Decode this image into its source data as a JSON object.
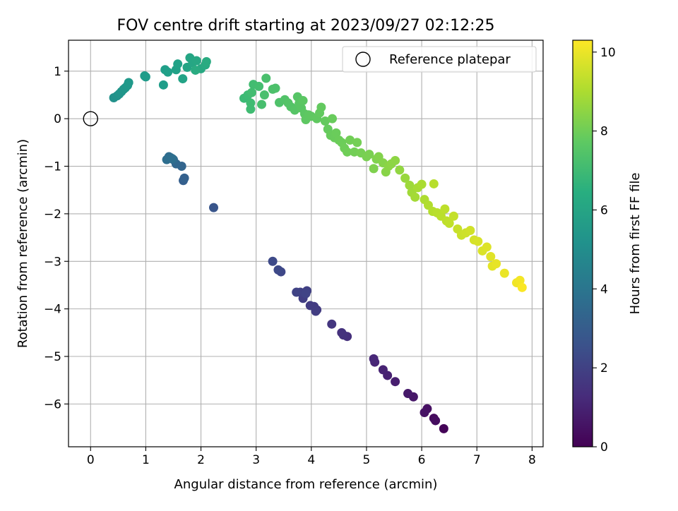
{
  "chart_data": {
    "type": "scatter",
    "title": "FOV centre drift starting at 2023/09/27 02:12:25",
    "xlabel": "Angular distance from reference (arcmin)",
    "ylabel": "Rotation from reference (arcmin)",
    "xlim": [
      -0.4,
      8.2
    ],
    "ylim": [
      -6.9,
      1.65
    ],
    "xticks": [
      0,
      1,
      2,
      3,
      4,
      5,
      6,
      7,
      8
    ],
    "xtick_labels": [
      "0",
      "1",
      "2",
      "3",
      "4",
      "5",
      "6",
      "7",
      "8"
    ],
    "yticks": [
      1,
      0,
      -1,
      -2,
      -3,
      -4,
      -5,
      -6
    ],
    "ytick_labels": [
      "1",
      "0",
      "−1",
      "−2",
      "−3",
      "−4",
      "−5",
      "−6"
    ],
    "grid": true,
    "legend": {
      "placement": "top-right",
      "entries": [
        "Reference platepar"
      ]
    },
    "reference_point": {
      "x": 0,
      "y": 0
    },
    "colorbar": {
      "label": "Hours from first FF file",
      "range": [
        0,
        10.3
      ],
      "ticks": [
        0,
        2,
        4,
        6,
        8,
        10
      ],
      "tick_labels": [
        "0",
        "2",
        "4",
        "6",
        "8",
        "10"
      ],
      "colormap": "viridis"
    },
    "points": [
      {
        "x": 6.4,
        "y": -6.52,
        "c": 0.1
      },
      {
        "x": 6.22,
        "y": -6.3,
        "c": 0.3
      },
      {
        "x": 6.25,
        "y": -6.35,
        "c": 0.35
      },
      {
        "x": 6.1,
        "y": -6.1,
        "c": 0.45
      },
      {
        "x": 6.05,
        "y": -6.18,
        "c": 0.5
      },
      {
        "x": 5.85,
        "y": -5.85,
        "c": 0.65
      },
      {
        "x": 5.75,
        "y": -5.78,
        "c": 0.7
      },
      {
        "x": 5.52,
        "y": -5.53,
        "c": 0.85
      },
      {
        "x": 5.38,
        "y": -5.4,
        "c": 0.95
      },
      {
        "x": 5.3,
        "y": -5.28,
        "c": 1.0
      },
      {
        "x": 5.15,
        "y": -5.12,
        "c": 1.1
      },
      {
        "x": 5.13,
        "y": -5.05,
        "c": 1.15
      },
      {
        "x": 4.65,
        "y": -4.58,
        "c": 1.4
      },
      {
        "x": 4.55,
        "y": -4.5,
        "c": 1.45
      },
      {
        "x": 4.58,
        "y": -4.55,
        "c": 1.5
      },
      {
        "x": 4.37,
        "y": -4.32,
        "c": 1.6
      },
      {
        "x": 4.1,
        "y": -4.02,
        "c": 1.75
      },
      {
        "x": 4.05,
        "y": -3.95,
        "c": 1.8
      },
      {
        "x": 3.98,
        "y": -3.93,
        "c": 1.82
      },
      {
        "x": 4.08,
        "y": -4.05,
        "c": 1.85
      },
      {
        "x": 3.85,
        "y": -3.78,
        "c": 1.9
      },
      {
        "x": 3.92,
        "y": -3.62,
        "c": 1.95
      },
      {
        "x": 3.8,
        "y": -3.65,
        "c": 2.0
      },
      {
        "x": 3.73,
        "y": -3.65,
        "c": 2.05
      },
      {
        "x": 3.9,
        "y": -3.68,
        "c": 2.1
      },
      {
        "x": 3.45,
        "y": -3.22,
        "c": 2.2
      },
      {
        "x": 3.4,
        "y": -3.18,
        "c": 2.25
      },
      {
        "x": 3.3,
        "y": -3.0,
        "c": 2.3
      },
      {
        "x": 2.23,
        "y": -1.87,
        "c": 2.7
      },
      {
        "x": 1.68,
        "y": -1.3,
        "c": 3.1
      },
      {
        "x": 1.7,
        "y": -1.25,
        "c": 3.15
      },
      {
        "x": 1.65,
        "y": -1.0,
        "c": 3.3
      },
      {
        "x": 1.55,
        "y": -0.95,
        "c": 3.4
      },
      {
        "x": 1.5,
        "y": -0.86,
        "c": 3.5
      },
      {
        "x": 1.45,
        "y": -0.82,
        "c": 3.6
      },
      {
        "x": 1.42,
        "y": -0.8,
        "c": 3.65
      },
      {
        "x": 1.38,
        "y": -0.86,
        "c": 3.7
      },
      {
        "x": 1.48,
        "y": -0.84,
        "c": 3.75
      },
      {
        "x": 0.42,
        "y": 0.44,
        "c": 5.2
      },
      {
        "x": 0.48,
        "y": 0.48,
        "c": 5.25
      },
      {
        "x": 0.52,
        "y": 0.52,
        "c": 5.3
      },
      {
        "x": 0.56,
        "y": 0.57,
        "c": 5.35
      },
      {
        "x": 0.6,
        "y": 0.62,
        "c": 5.4
      },
      {
        "x": 0.63,
        "y": 0.65,
        "c": 5.45
      },
      {
        "x": 0.67,
        "y": 0.7,
        "c": 5.5
      },
      {
        "x": 0.69,
        "y": 0.76,
        "c": 5.5
      },
      {
        "x": 1.0,
        "y": 0.88,
        "c": 5.6
      },
      {
        "x": 0.98,
        "y": 0.9,
        "c": 5.65
      },
      {
        "x": 1.32,
        "y": 0.71,
        "c": 5.7
      },
      {
        "x": 1.35,
        "y": 1.03,
        "c": 5.75
      },
      {
        "x": 1.4,
        "y": 0.98,
        "c": 5.8
      },
      {
        "x": 1.55,
        "y": 1.03,
        "c": 5.85
      },
      {
        "x": 1.58,
        "y": 1.15,
        "c": 5.9
      },
      {
        "x": 1.67,
        "y": 0.84,
        "c": 5.95
      },
      {
        "x": 1.75,
        "y": 1.08,
        "c": 6.0
      },
      {
        "x": 1.8,
        "y": 1.28,
        "c": 6.05
      },
      {
        "x": 1.85,
        "y": 1.18,
        "c": 6.1
      },
      {
        "x": 1.92,
        "y": 1.22,
        "c": 6.15
      },
      {
        "x": 2.0,
        "y": 1.05,
        "c": 6.2
      },
      {
        "x": 2.08,
        "y": 1.13,
        "c": 6.25
      },
      {
        "x": 2.1,
        "y": 1.2,
        "c": 6.3
      },
      {
        "x": 1.9,
        "y": 1.02,
        "c": 6.3
      },
      {
        "x": 2.78,
        "y": 0.43,
        "c": 7.0
      },
      {
        "x": 2.85,
        "y": 0.5,
        "c": 7.05
      },
      {
        "x": 2.9,
        "y": 0.2,
        "c": 7.1
      },
      {
        "x": 2.9,
        "y": 0.33,
        "c": 7.1
      },
      {
        "x": 2.92,
        "y": 0.55,
        "c": 7.15
      },
      {
        "x": 2.95,
        "y": 0.72,
        "c": 7.15
      },
      {
        "x": 3.05,
        "y": 0.68,
        "c": 7.2
      },
      {
        "x": 3.1,
        "y": 0.3,
        "c": 7.25
      },
      {
        "x": 3.15,
        "y": 0.5,
        "c": 7.3
      },
      {
        "x": 3.18,
        "y": 0.85,
        "c": 7.3
      },
      {
        "x": 3.3,
        "y": 0.62,
        "c": 7.35
      },
      {
        "x": 3.35,
        "y": 0.64,
        "c": 7.35
      },
      {
        "x": 3.42,
        "y": 0.34,
        "c": 7.4
      },
      {
        "x": 3.52,
        "y": 0.4,
        "c": 7.45
      },
      {
        "x": 3.58,
        "y": 0.33,
        "c": 7.5
      },
      {
        "x": 3.63,
        "y": 0.25,
        "c": 7.5
      },
      {
        "x": 3.7,
        "y": 0.18,
        "c": 7.55
      },
      {
        "x": 3.75,
        "y": 0.46,
        "c": 7.55
      },
      {
        "x": 3.78,
        "y": 0.32,
        "c": 7.6
      },
      {
        "x": 3.82,
        "y": 0.22,
        "c": 7.6
      },
      {
        "x": 3.85,
        "y": 0.38,
        "c": 7.65
      },
      {
        "x": 3.88,
        "y": 0.1,
        "c": 7.65
      },
      {
        "x": 3.9,
        "y": -0.02,
        "c": 7.7
      },
      {
        "x": 3.95,
        "y": 0.08,
        "c": 7.7
      },
      {
        "x": 4.0,
        "y": 0.05,
        "c": 7.72
      },
      {
        "x": 4.1,
        "y": 0.0,
        "c": 7.75
      },
      {
        "x": 4.15,
        "y": 0.12,
        "c": 7.78
      },
      {
        "x": 4.18,
        "y": 0.24,
        "c": 7.8
      },
      {
        "x": 4.25,
        "y": -0.05,
        "c": 7.82
      },
      {
        "x": 4.3,
        "y": -0.22,
        "c": 7.85
      },
      {
        "x": 4.35,
        "y": -0.35,
        "c": 7.9
      },
      {
        "x": 4.38,
        "y": 0.0,
        "c": 7.9
      },
      {
        "x": 4.42,
        "y": -0.4,
        "c": 7.92
      },
      {
        "x": 4.45,
        "y": -0.3,
        "c": 7.95
      },
      {
        "x": 4.5,
        "y": -0.45,
        "c": 7.97
      },
      {
        "x": 4.55,
        "y": -0.5,
        "c": 8.0
      },
      {
        "x": 4.6,
        "y": -0.62,
        "c": 8.02
      },
      {
        "x": 4.65,
        "y": -0.7,
        "c": 8.05
      },
      {
        "x": 4.7,
        "y": -0.45,
        "c": 8.08
      },
      {
        "x": 4.78,
        "y": -0.7,
        "c": 8.1
      },
      {
        "x": 4.83,
        "y": -0.5,
        "c": 8.12
      },
      {
        "x": 4.9,
        "y": -0.72,
        "c": 8.15
      },
      {
        "x": 5.0,
        "y": -0.8,
        "c": 8.2
      },
      {
        "x": 5.05,
        "y": -0.75,
        "c": 8.22
      },
      {
        "x": 5.13,
        "y": -1.05,
        "c": 8.3
      },
      {
        "x": 5.18,
        "y": -0.85,
        "c": 8.32
      },
      {
        "x": 5.22,
        "y": -0.8,
        "c": 8.35
      },
      {
        "x": 5.3,
        "y": -0.93,
        "c": 8.4
      },
      {
        "x": 5.35,
        "y": -1.12,
        "c": 8.45
      },
      {
        "x": 5.4,
        "y": -1.0,
        "c": 8.5
      },
      {
        "x": 5.45,
        "y": -0.95,
        "c": 8.52
      },
      {
        "x": 5.52,
        "y": -0.88,
        "c": 8.55
      },
      {
        "x": 5.6,
        "y": -1.08,
        "c": 8.6
      },
      {
        "x": 5.7,
        "y": -1.25,
        "c": 8.7
      },
      {
        "x": 5.78,
        "y": -1.4,
        "c": 8.8
      },
      {
        "x": 5.82,
        "y": -1.55,
        "c": 8.85
      },
      {
        "x": 5.88,
        "y": -1.65,
        "c": 8.9
      },
      {
        "x": 5.93,
        "y": -1.45,
        "c": 8.95
      },
      {
        "x": 6.0,
        "y": -1.38,
        "c": 9.0
      },
      {
        "x": 6.05,
        "y": -1.7,
        "c": 9.05
      },
      {
        "x": 6.12,
        "y": -1.82,
        "c": 9.1
      },
      {
        "x": 6.2,
        "y": -1.95,
        "c": 9.15
      },
      {
        "x": 6.22,
        "y": -1.37,
        "c": 9.2
      },
      {
        "x": 6.28,
        "y": -1.98,
        "c": 9.22
      },
      {
        "x": 6.35,
        "y": -2.05,
        "c": 9.25
      },
      {
        "x": 6.42,
        "y": -1.9,
        "c": 9.3
      },
      {
        "x": 6.45,
        "y": -2.15,
        "c": 9.32
      },
      {
        "x": 6.5,
        "y": -2.2,
        "c": 9.35
      },
      {
        "x": 6.58,
        "y": -2.05,
        "c": 9.4
      },
      {
        "x": 6.65,
        "y": -2.32,
        "c": 9.45
      },
      {
        "x": 6.72,
        "y": -2.45,
        "c": 9.5
      },
      {
        "x": 6.8,
        "y": -2.4,
        "c": 9.55
      },
      {
        "x": 6.88,
        "y": -2.35,
        "c": 9.6
      },
      {
        "x": 6.95,
        "y": -2.55,
        "c": 9.65
      },
      {
        "x": 7.02,
        "y": -2.58,
        "c": 9.7
      },
      {
        "x": 7.1,
        "y": -2.78,
        "c": 9.75
      },
      {
        "x": 7.18,
        "y": -2.7,
        "c": 9.8
      },
      {
        "x": 7.25,
        "y": -2.9,
        "c": 9.85
      },
      {
        "x": 7.28,
        "y": -3.1,
        "c": 9.9
      },
      {
        "x": 7.35,
        "y": -3.05,
        "c": 9.95
      },
      {
        "x": 7.5,
        "y": -3.25,
        "c": 10.0
      },
      {
        "x": 7.72,
        "y": -3.45,
        "c": 10.1
      },
      {
        "x": 7.78,
        "y": -3.4,
        "c": 10.15
      },
      {
        "x": 7.82,
        "y": -3.55,
        "c": 10.25
      }
    ]
  }
}
